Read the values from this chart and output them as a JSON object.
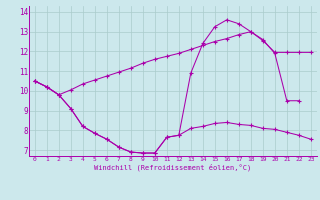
{
  "xlabel": "Windchill (Refroidissement éolien,°C)",
  "background_color": "#cce8ec",
  "line_color": "#aa00aa",
  "grid_color": "#aacccc",
  "xlim": [
    -0.5,
    23.5
  ],
  "ylim": [
    6.7,
    14.3
  ],
  "xticks": [
    0,
    1,
    2,
    3,
    4,
    5,
    6,
    7,
    8,
    9,
    10,
    11,
    12,
    13,
    14,
    15,
    16,
    17,
    18,
    19,
    20,
    21,
    22,
    23
  ],
  "yticks": [
    7,
    8,
    9,
    10,
    11,
    12,
    13,
    14
  ],
  "line1_x": [
    0,
    1,
    2,
    3,
    4,
    5,
    6,
    7,
    8,
    9,
    10,
    11,
    12,
    13,
    14,
    15,
    16,
    17,
    18,
    19,
    20,
    21,
    22
  ],
  "line1_y": [
    10.5,
    10.2,
    9.8,
    9.1,
    8.2,
    7.85,
    7.55,
    7.15,
    6.9,
    6.85,
    6.85,
    7.65,
    7.75,
    10.9,
    12.4,
    13.25,
    13.6,
    13.4,
    13.0,
    12.6,
    11.9,
    9.5,
    9.5
  ],
  "line2_x": [
    0,
    1,
    2,
    3,
    4,
    5,
    6,
    7,
    8,
    9,
    10,
    11,
    12,
    13,
    14,
    15,
    16,
    17,
    18,
    19,
    20,
    21,
    22,
    23
  ],
  "line2_y": [
    10.5,
    10.2,
    9.8,
    9.1,
    8.2,
    7.85,
    7.55,
    7.15,
    6.9,
    6.85,
    6.85,
    7.65,
    7.75,
    8.1,
    8.2,
    8.35,
    8.4,
    8.3,
    8.25,
    8.1,
    8.05,
    7.9,
    7.75,
    7.55
  ],
  "line3_x": [
    0,
    1,
    2,
    3,
    4,
    5,
    6,
    7,
    8,
    9,
    10,
    11,
    12,
    13,
    14,
    15,
    16,
    17,
    18,
    19,
    20,
    21,
    22,
    23
  ],
  "line3_y": [
    10.5,
    10.2,
    9.8,
    10.05,
    10.35,
    10.55,
    10.75,
    10.95,
    11.15,
    11.4,
    11.6,
    11.75,
    11.9,
    12.1,
    12.3,
    12.5,
    12.65,
    12.85,
    13.0,
    12.55,
    11.95,
    11.95,
    11.95,
    11.95
  ]
}
